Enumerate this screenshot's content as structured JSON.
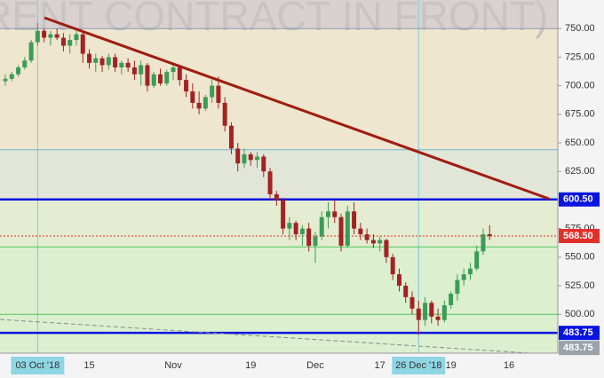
{
  "chart_data": {
    "type": "candlestick",
    "watermark": "RENT CONTRACT IN FRONT)",
    "categories": [
      null,
      null,
      null,
      null,
      null,
      "03 Oct '18",
      null,
      null,
      null,
      null,
      null,
      null,
      null,
      "15",
      null,
      null,
      null,
      null,
      null,
      null,
      null,
      null,
      null,
      null,
      null,
      null,
      "Nov",
      null,
      null,
      null,
      null,
      null,
      null,
      null,
      null,
      null,
      null,
      null,
      "19",
      null,
      null,
      null,
      null,
      null,
      null,
      null,
      null,
      null,
      "Dec",
      null,
      null,
      null,
      null,
      null,
      null,
      null,
      null,
      null,
      "17",
      null,
      null,
      null,
      null,
      null,
      "26 Dec '18",
      null,
      null,
      null,
      null,
      "19",
      null,
      null,
      null,
      null,
      null,
      null,
      null,
      null,
      "16"
    ],
    "highlight": [
      5,
      64
    ],
    "open": [
      704,
      706,
      710,
      716,
      722,
      738,
      748,
      742,
      745,
      742,
      735,
      740,
      745,
      728,
      720,
      724,
      718,
      725,
      716,
      720,
      716,
      710,
      718,
      700,
      710,
      702,
      712,
      716,
      705,
      695,
      685,
      680,
      690,
      700,
      685,
      665,
      645,
      632,
      640,
      635,
      638,
      625,
      605,
      600,
      575,
      580,
      570,
      575,
      560,
      568,
      585,
      590,
      585,
      560,
      590,
      575,
      570,
      565,
      562,
      565,
      550,
      535,
      525,
      515,
      505,
      495,
      510,
      498,
      495,
      508,
      518,
      530,
      535,
      540,
      555,
      570,
      null,
      null,
      null
    ],
    "high": [
      710,
      712,
      718,
      725,
      740,
      755,
      750,
      748,
      750,
      746,
      745,
      748,
      748,
      732,
      728,
      726,
      728,
      728,
      722,
      724,
      722,
      722,
      720,
      712,
      715,
      714,
      720,
      718,
      710,
      702,
      695,
      692,
      705,
      708,
      690,
      668,
      650,
      645,
      642,
      642,
      640,
      628,
      608,
      602,
      585,
      582,
      578,
      580,
      572,
      590,
      598,
      600,
      588,
      595,
      598,
      580,
      575,
      570,
      568,
      566,
      553,
      540,
      528,
      520,
      512,
      515,
      512,
      505,
      512,
      520,
      535,
      540,
      545,
      560,
      575,
      578,
      null,
      null,
      null
    ],
    "low": [
      700,
      704,
      708,
      714,
      720,
      735,
      738,
      735,
      740,
      730,
      728,
      735,
      720,
      715,
      712,
      712,
      714,
      712,
      710,
      712,
      705,
      700,
      695,
      698,
      700,
      700,
      705,
      700,
      690,
      680,
      675,
      678,
      685,
      680,
      660,
      640,
      625,
      628,
      630,
      628,
      620,
      600,
      595,
      570,
      565,
      565,
      560,
      555,
      545,
      565,
      575,
      580,
      555,
      558,
      570,
      565,
      562,
      558,
      555,
      545,
      530,
      520,
      510,
      500,
      482,
      490,
      492,
      490,
      493,
      505,
      512,
      525,
      530,
      538,
      552,
      565,
      null,
      null,
      null
    ],
    "close": [
      706,
      710,
      716,
      722,
      738,
      748,
      742,
      745,
      742,
      735,
      740,
      745,
      728,
      720,
      724,
      718,
      725,
      716,
      720,
      716,
      710,
      718,
      700,
      710,
      702,
      712,
      716,
      705,
      695,
      685,
      680,
      690,
      700,
      685,
      665,
      645,
      632,
      640,
      635,
      638,
      625,
      605,
      600,
      575,
      580,
      570,
      575,
      560,
      568,
      585,
      590,
      585,
      560,
      590,
      575,
      570,
      565,
      562,
      565,
      550,
      535,
      525,
      515,
      505,
      495,
      510,
      498,
      495,
      508,
      518,
      530,
      535,
      540,
      555,
      570,
      568.5,
      null,
      null,
      null
    ],
    "up_color": "#3c9c57",
    "down_color": "#a32222",
    "ylim": [
      466,
      775
    ],
    "yticks": [
      {
        "value": 500,
        "label": "500.00"
      },
      {
        "value": 525,
        "label": "525.00"
      },
      {
        "value": 550,
        "label": "550.00"
      },
      {
        "value": 575,
        "label": "575.00"
      },
      {
        "value": 600,
        "label": "600.00"
      },
      {
        "value": 625,
        "label": "625.00"
      },
      {
        "value": 650,
        "label": "650.00"
      },
      {
        "value": 675,
        "label": "675.00"
      },
      {
        "value": 700,
        "label": "700.00"
      },
      {
        "value": 725,
        "label": "725.00"
      },
      {
        "value": 750,
        "label": "750.00"
      }
    ],
    "levels": [
      {
        "value": 750,
        "color": "#8c9aa8",
        "width": 1
      },
      {
        "value": 644,
        "color": "#6fb6d0",
        "width": 1
      },
      {
        "value": 600.5,
        "label": "600.50",
        "color": "#0a14e0",
        "width": 2.5
      },
      {
        "value": 568.5,
        "label": "568.50",
        "color": "#e0302a",
        "width": 1,
        "dash": true
      },
      {
        "value": 559,
        "color": "#4cc85a",
        "width": 1
      },
      {
        "value": 500,
        "color": "#4cc85a",
        "width": 1
      },
      {
        "value": 483.75,
        "label": "483.75",
        "color": "#0a14e0",
        "width": 2.5
      },
      {
        "value": 483.75,
        "label": "483.75",
        "color": "#9aa2aa",
        "width": 0
      }
    ]
  }
}
